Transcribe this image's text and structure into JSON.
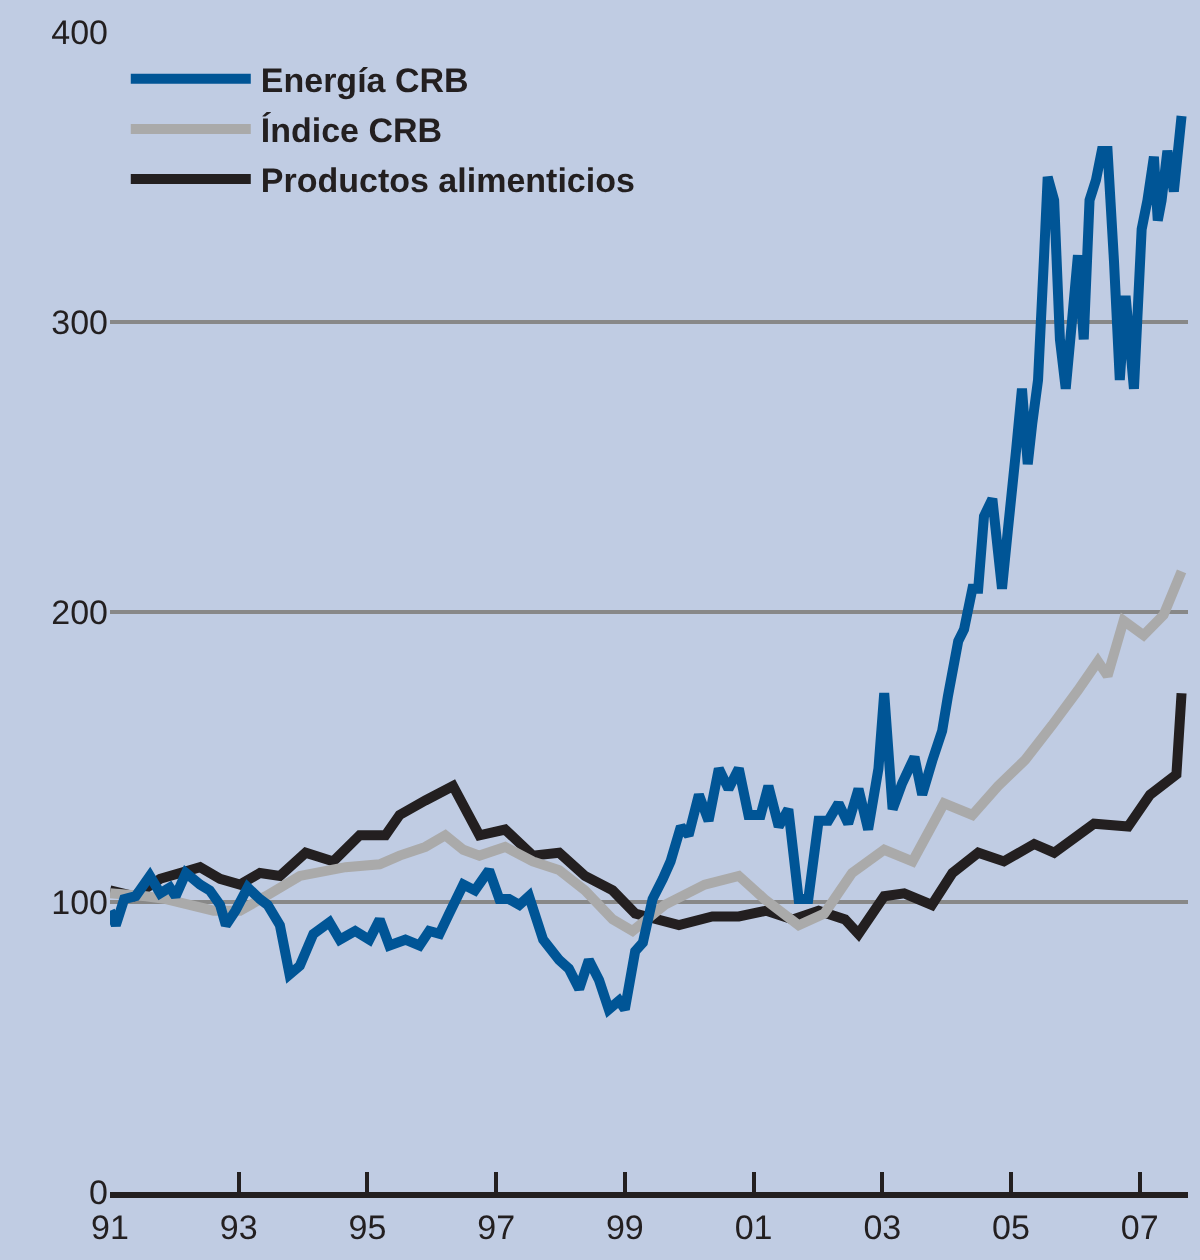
{
  "chart_data": {
    "type": "line",
    "xlim": [
      1991,
      2007.75
    ],
    "ylim": [
      0,
      400
    ],
    "xticks": [
      {
        "value": 1991,
        "label": "91"
      },
      {
        "value": 1993,
        "label": "93"
      },
      {
        "value": 1995,
        "label": "95"
      },
      {
        "value": 1997,
        "label": "97"
      },
      {
        "value": 1999,
        "label": "99"
      },
      {
        "value": 2001,
        "label": "01"
      },
      {
        "value": 2003,
        "label": "03"
      },
      {
        "value": 2005,
        "label": "05"
      },
      {
        "value": 2007,
        "label": "07"
      }
    ],
    "yticks": [
      0,
      100,
      200,
      300,
      400
    ],
    "grid": "y",
    "legend": "top left",
    "marker": "none",
    "line_style": "solid",
    "series": [
      {
        "name": "Energía CRB",
        "color": "#005596",
        "x": [
          1991.0,
          1991.09,
          1991.22,
          1991.4,
          1991.62,
          1991.78,
          1991.93,
          1992.02,
          1992.18,
          1992.4,
          1992.55,
          1992.71,
          1992.8,
          1992.95,
          1993.14,
          1993.33,
          1993.45,
          1993.64,
          1993.79,
          1993.95,
          1994.16,
          1994.41,
          1994.57,
          1994.81,
          1995.03,
          1995.19,
          1995.34,
          1995.59,
          1995.81,
          1995.96,
          1996.12,
          1996.27,
          1996.49,
          1996.67,
          1996.89,
          1997.05,
          1997.2,
          1997.36,
          1997.51,
          1997.73,
          1997.98,
          1998.13,
          1998.29,
          1998.44,
          1998.6,
          1998.75,
          1998.91,
          1999.0,
          1999.16,
          1999.28,
          1999.43,
          1999.59,
          1999.71,
          1999.87,
          1999.99,
          2000.15,
          2000.3,
          2000.46,
          2000.61,
          2000.77,
          2000.92,
          2001.11,
          2001.23,
          2001.39,
          2001.54,
          2001.7,
          2001.85,
          2002.01,
          2002.16,
          2002.32,
          2002.47,
          2002.63,
          2002.78,
          2002.94,
          2003.03,
          2003.16,
          2003.31,
          2003.5,
          2003.62,
          2003.78,
          2003.93,
          2004.02,
          2004.18,
          2004.27,
          2004.4,
          2004.49,
          2004.58,
          2004.71,
          2004.86,
          2004.95,
          2005.08,
          2005.17,
          2005.26,
          2005.33,
          2005.42,
          2005.51,
          2005.57,
          2005.67,
          2005.76,
          2005.85,
          2005.95,
          2006.04,
          2006.13,
          2006.22,
          2006.32,
          2006.41,
          2006.5,
          2006.6,
          2006.69,
          2006.78,
          2006.91,
          2007.03,
          2007.12,
          2007.22,
          2007.28,
          2007.34,
          2007.43,
          2007.53,
          2007.65
        ],
        "values": [
          97,
          92,
          101,
          102,
          109,
          103,
          105,
          102,
          110,
          106,
          104,
          99,
          92,
          97,
          105,
          101,
          99,
          92,
          75,
          78,
          89,
          93,
          87,
          90,
          87,
          94,
          85,
          87,
          85,
          90,
          89,
          96,
          106,
          104,
          111,
          101,
          101,
          99,
          102,
          87,
          80,
          77,
          70,
          80,
          73,
          63,
          66,
          63,
          83,
          86,
          101,
          108,
          114,
          126,
          123,
          137,
          128,
          146,
          139,
          146,
          130,
          130,
          140,
          126,
          132,
          101,
          101,
          128,
          128,
          134,
          127,
          139,
          125,
          146,
          172,
          132,
          141,
          150,
          137,
          149,
          159,
          171,
          190,
          194,
          208,
          208,
          233,
          239,
          208,
          228,
          256,
          277,
          251,
          265,
          280,
          321,
          350,
          342,
          294,
          277,
          301,
          323,
          294,
          342,
          349,
          359,
          359,
          321,
          280,
          309,
          277,
          332,
          342,
          357,
          335,
          342,
          359,
          345,
          371
        ]
      },
      {
        "name": "Índice CRB",
        "color": "#aaaaaa",
        "x": [
          1991.0,
          1991.56,
          1991.87,
          1992.61,
          1993.02,
          1993.42,
          1993.95,
          1994.66,
          1995.19,
          1995.5,
          1995.9,
          1996.21,
          1996.49,
          1996.74,
          1997.14,
          1997.57,
          1997.98,
          1998.38,
          1998.81,
          1999.12,
          1999.62,
          2000.24,
          2000.77,
          2001.17,
          2001.7,
          2002.1,
          2002.53,
          2003.03,
          2003.47,
          2003.96,
          2004.4,
          2004.8,
          2005.22,
          2005.64,
          2006.04,
          2006.35,
          2006.5,
          2006.75,
          2007.06,
          2007.37,
          2007.65
        ],
        "values": [
          103,
          102,
          101,
          97,
          97,
          102,
          109,
          112,
          113,
          116,
          119,
          123,
          118,
          116,
          119,
          114,
          111,
          104,
          94,
          90,
          99,
          106,
          109,
          101,
          92,
          96,
          110,
          118,
          114,
          134,
          130,
          140,
          149,
          161,
          173,
          183,
          178,
          197,
          192,
          199,
          214
        ]
      },
      {
        "name": "Productos alimenticios",
        "color": "#231f20",
        "x": [
          1991.0,
          1991.37,
          1991.78,
          1992.09,
          1992.4,
          1992.71,
          1993.02,
          1993.33,
          1993.64,
          1994.04,
          1994.47,
          1994.88,
          1995.28,
          1995.5,
          1995.9,
          1996.33,
          1996.74,
          1997.14,
          1997.57,
          1997.98,
          1998.38,
          1998.81,
          1999.16,
          1999.84,
          2000.36,
          2000.77,
          2001.2,
          2001.61,
          2002.01,
          2002.42,
          2002.63,
          2003.03,
          2003.34,
          2003.77,
          2004.09,
          2004.49,
          2004.89,
          2005.36,
          2005.67,
          2006.29,
          2006.82,
          2007.16,
          2007.57,
          2007.65
        ],
        "values": [
          104,
          102,
          108,
          110,
          112,
          108,
          106,
          110,
          109,
          117,
          114,
          123,
          123,
          130,
          135,
          140,
          123,
          125,
          116,
          117,
          109,
          104,
          96,
          92,
          95,
          95,
          97,
          94,
          97,
          94,
          89,
          102,
          103,
          99,
          110,
          117,
          114,
          120,
          117,
          127,
          126,
          137,
          144,
          172
        ]
      }
    ]
  }
}
